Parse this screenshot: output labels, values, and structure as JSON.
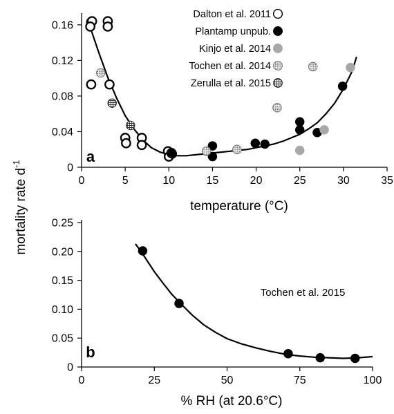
{
  "ylabel_shared": "mortality rate d",
  "ylabel_shared_sup": "-1",
  "colors": {
    "filled": "#000000",
    "gray": "#a8a8a8",
    "open_stroke": "#000000"
  },
  "chart_data": [
    {
      "type": "scatter",
      "panel_label": "a",
      "xlabel": "temperature (°C)",
      "ylabel": "mortality rate d-1",
      "xlim": [
        0,
        35
      ],
      "ylim": [
        0,
        0.17
      ],
      "xticks": [
        "0",
        "5",
        "10",
        "15",
        "20",
        "25",
        "30",
        "35"
      ],
      "yticks": [
        "0",
        "0.04",
        "0.08",
        "0.12",
        "0.16"
      ],
      "grid": false,
      "legend_position": "top-right",
      "series": [
        {
          "name": "Dalton et al. 2011",
          "marker": "open-circle",
          "points": [
            [
              1.1,
              0.163
            ],
            [
              1.2,
              0.164
            ],
            [
              1.0,
              0.158
            ],
            [
              3.0,
              0.164
            ],
            [
              3.0,
              0.158
            ],
            [
              1.1,
              0.093
            ],
            [
              3.2,
              0.093
            ],
            [
              5.0,
              0.033
            ],
            [
              5.1,
              0.027
            ],
            [
              6.9,
              0.033
            ],
            [
              6.9,
              0.025
            ],
            [
              9.9,
              0.018
            ],
            [
              10.0,
              0.012
            ],
            [
              10.3,
              0.016
            ]
          ]
        },
        {
          "name": "Plantamp unpub.",
          "marker": "filled-circle",
          "points": [
            [
              10.4,
              0.015
            ],
            [
              15.0,
              0.024
            ],
            [
              15.0,
              0.012
            ],
            [
              19.9,
              0.027
            ],
            [
              21.0,
              0.026
            ],
            [
              25.0,
              0.051
            ],
            [
              25.0,
              0.042
            ],
            [
              27.0,
              0.039
            ],
            [
              29.9,
              0.091
            ]
          ]
        },
        {
          "name": "Kinjo  et al.   2014",
          "marker": "gray-circle",
          "points": [
            [
              25.0,
              0.019
            ],
            [
              27.8,
              0.042
            ],
            [
              30.8,
              0.112
            ]
          ]
        },
        {
          "name": "Tochen et al. 2014",
          "marker": "dotted-circle",
          "points": [
            [
              2.2,
              0.106
            ],
            [
              14.3,
              0.018
            ],
            [
              17.8,
              0.02
            ],
            [
              22.4,
              0.067
            ],
            [
              26.5,
              0.113
            ]
          ]
        },
        {
          "name": "Zerulla et al. 2015",
          "marker": "hatched-circle",
          "points": [
            [
              3.5,
              0.072
            ],
            [
              5.6,
              0.047
            ]
          ]
        }
      ],
      "fit_curve": [
        [
          1.0,
          0.157
        ],
        [
          2.0,
          0.128
        ],
        [
          3.0,
          0.101
        ],
        [
          4.0,
          0.078
        ],
        [
          5.0,
          0.058
        ],
        [
          6.0,
          0.043
        ],
        [
          7.0,
          0.031
        ],
        [
          8.0,
          0.022
        ],
        [
          9.0,
          0.017
        ],
        [
          10.0,
          0.014
        ],
        [
          11.0,
          0.013
        ],
        [
          12.0,
          0.013
        ],
        [
          13.0,
          0.014
        ],
        [
          14.0,
          0.015
        ],
        [
          15.0,
          0.016
        ],
        [
          16.0,
          0.017
        ],
        [
          17.0,
          0.018
        ],
        [
          18.0,
          0.019
        ],
        [
          19.0,
          0.02
        ],
        [
          20.0,
          0.022
        ],
        [
          21.0,
          0.024
        ],
        [
          22.0,
          0.026
        ],
        [
          23.0,
          0.029
        ],
        [
          24.0,
          0.033
        ],
        [
          25.0,
          0.037
        ],
        [
          26.0,
          0.043
        ],
        [
          27.0,
          0.05
        ],
        [
          28.0,
          0.06
        ],
        [
          29.0,
          0.072
        ],
        [
          30.0,
          0.088
        ],
        [
          31.0,
          0.108
        ],
        [
          31.5,
          0.124
        ]
      ]
    },
    {
      "type": "scatter",
      "panel_label": "b",
      "xlabel": "% RH (at 20.6°C)",
      "ylabel": "mortality rate d-1",
      "xlim": [
        0,
        100
      ],
      "ylim": [
        0,
        0.25
      ],
      "xticks": [
        "0",
        "25",
        "50",
        "75",
        "100"
      ],
      "yticks": [
        "0",
        "0.05",
        "0.10",
        "0.15",
        "0.20",
        "0.25"
      ],
      "grid": false,
      "annotation": "Tochen et al. 2015",
      "series": [
        {
          "name": "Tochen et al. 2015",
          "marker": "filled-circle",
          "points": [
            [
              21,
              0.201
            ],
            [
              33.5,
              0.11
            ],
            [
              71,
              0.023
            ],
            [
              82,
              0.016
            ],
            [
              94,
              0.015
            ]
          ]
        }
      ],
      "fit_curve": [
        [
          18.5,
          0.213
        ],
        [
          20,
          0.203
        ],
        [
          22,
          0.188
        ],
        [
          25,
          0.165
        ],
        [
          28,
          0.145
        ],
        [
          31,
          0.126
        ],
        [
          34,
          0.11
        ],
        [
          38,
          0.09
        ],
        [
          42,
          0.073
        ],
        [
          46,
          0.06
        ],
        [
          50,
          0.049
        ],
        [
          55,
          0.04
        ],
        [
          60,
          0.033
        ],
        [
          65,
          0.027
        ],
        [
          70,
          0.022
        ],
        [
          75,
          0.019
        ],
        [
          80,
          0.017
        ],
        [
          85,
          0.016
        ],
        [
          90,
          0.015
        ],
        [
          95,
          0.016
        ],
        [
          100,
          0.018
        ]
      ]
    }
  ]
}
